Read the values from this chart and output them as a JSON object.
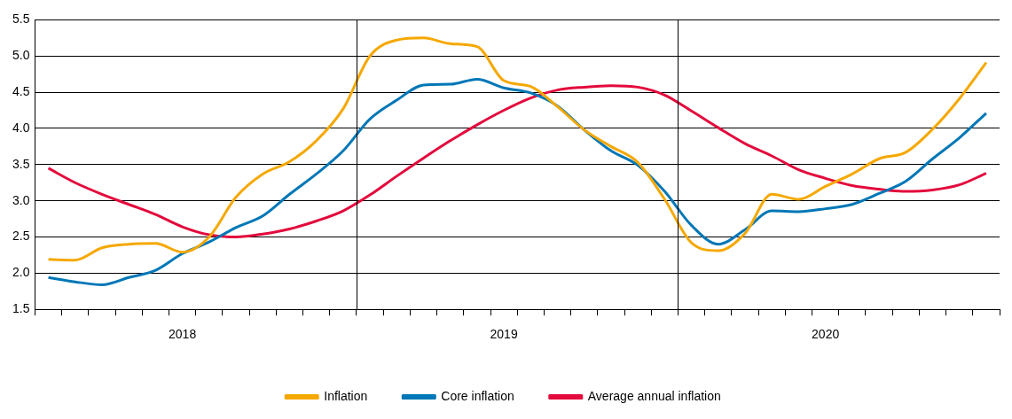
{
  "chart_data": {
    "type": "line",
    "categories": [
      null,
      null,
      null,
      null,
      null,
      "2018",
      null,
      null,
      null,
      null,
      null,
      null,
      null,
      null,
      null,
      null,
      null,
      "2019",
      null,
      null,
      null,
      null,
      null,
      null,
      null,
      null,
      null,
      null,
      null,
      "2020",
      null,
      null,
      null,
      null,
      null,
      null
    ],
    "series": [
      {
        "name": "Inflation",
        "color": "#f5a800",
        "values": [
          2.19,
          2.18,
          2.35,
          2.4,
          2.41,
          2.29,
          2.5,
          3.05,
          3.37,
          3.54,
          3.83,
          4.27,
          5.0,
          5.22,
          5.25,
          5.17,
          5.13,
          4.66,
          4.58,
          4.3,
          3.98,
          3.75,
          3.53,
          3.02,
          2.42,
          2.31,
          2.55,
          3.09,
          3.02,
          3.2,
          3.37,
          3.58,
          3.67,
          3.99,
          4.41,
          4.91
        ]
      },
      {
        "name": "Core inflation",
        "color": "#0077b6",
        "values": [
          1.94,
          1.88,
          1.84,
          1.94,
          2.04,
          2.27,
          2.43,
          2.63,
          2.79,
          3.09,
          3.37,
          3.69,
          4.13,
          4.39,
          4.6,
          4.61,
          4.68,
          4.56,
          4.49,
          4.31,
          3.98,
          3.69,
          3.49,
          3.13,
          2.66,
          2.4,
          2.6,
          2.86,
          2.85,
          2.89,
          2.95,
          3.1,
          3.27,
          3.58,
          3.87,
          4.21
        ]
      },
      {
        "name": "Average annual inflation",
        "color": "#e30a3c",
        "values": [
          3.45,
          3.25,
          3.09,
          2.95,
          2.81,
          2.64,
          2.53,
          2.5,
          2.54,
          2.61,
          2.72,
          2.86,
          3.08,
          3.34,
          3.59,
          3.83,
          4.05,
          4.25,
          4.42,
          4.53,
          4.57,
          4.59,
          4.57,
          4.46,
          4.24,
          4.01,
          3.79,
          3.62,
          3.43,
          3.31,
          3.21,
          3.16,
          3.13,
          3.15,
          3.22,
          3.38
        ]
      }
    ],
    "ylim": [
      1.5,
      5.5
    ],
    "yticks": [
      1.5,
      {
        "value": 2,
        "label": "2.0"
      },
      2.5,
      {
        "value": 3,
        "label": "3.0"
      },
      3.5,
      {
        "value": 4,
        "label": "4.0"
      },
      4.5,
      {
        "value": 5,
        "label": "5.0"
      },
      5.5
    ],
    "grid": true,
    "legend": "bottom",
    "marker": "none",
    "line_style": "solid"
  }
}
